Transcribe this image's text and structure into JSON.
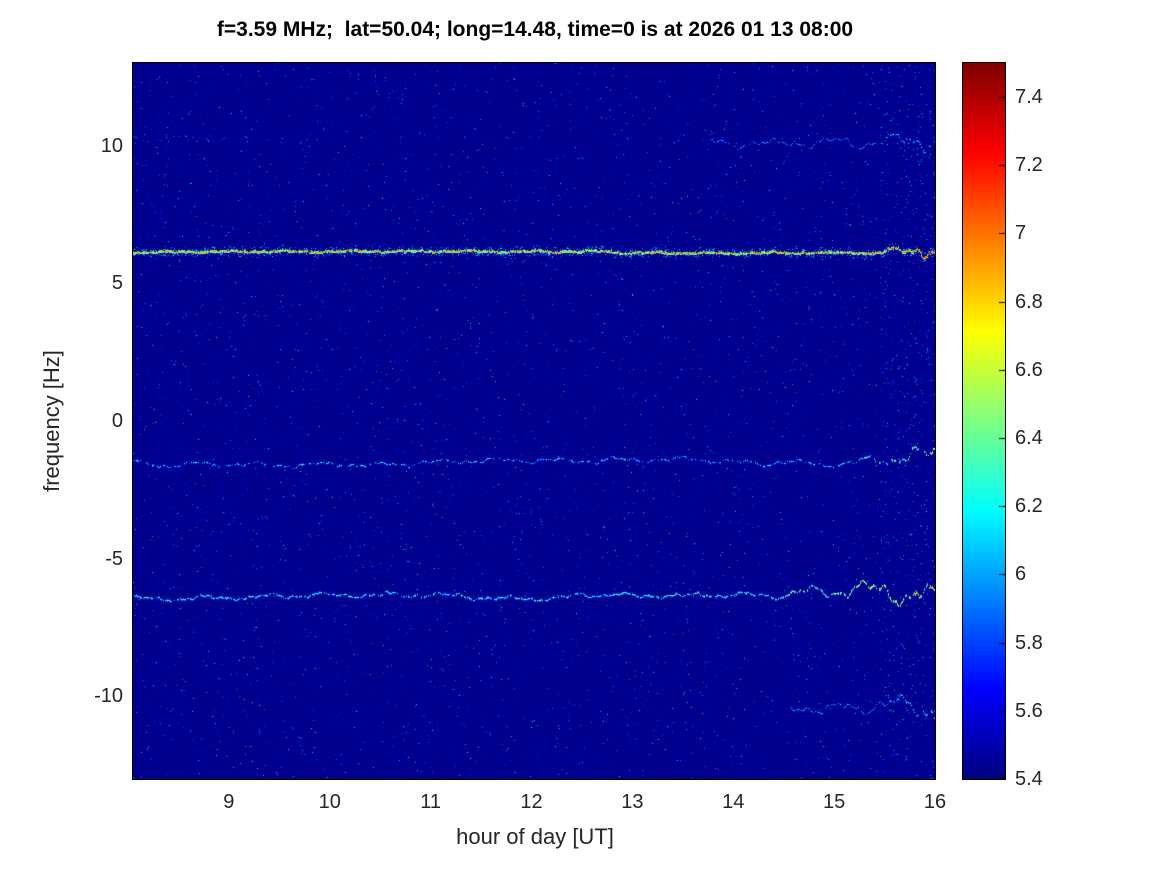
{
  "chart_data": {
    "type": "heatmap",
    "title": "f=3.59 MHz;  lat=50.04; long=14.48, time=0 is at 2026 01 13 08:00",
    "xlabel": "hour of day [UT]",
    "ylabel": "frequency [Hz]",
    "x_range": [
      8.05,
      16
    ],
    "y_range": [
      -13,
      13
    ],
    "x_ticks": [
      9,
      10,
      11,
      12,
      13,
      14,
      15,
      16
    ],
    "x_tick_labels": [
      "9",
      "10",
      "11",
      "12",
      "13",
      "14",
      "15",
      "16"
    ],
    "y_ticks": [
      10,
      5,
      0,
      -5,
      -10
    ],
    "y_tick_labels": [
      "10",
      "5",
      "0",
      "-5",
      "-10"
    ],
    "grid": false,
    "colorbar": {
      "colormap": "jet",
      "min": 5.4,
      "max": 7.5,
      "ticks": [
        7.4,
        7.2,
        7.0,
        6.8,
        6.6,
        6.4,
        6.2,
        6.0,
        5.8,
        5.6,
        5.4
      ],
      "tick_labels": [
        "7.4",
        "7.2",
        "7",
        "6.8",
        "6.6",
        "6.4",
        "6.2",
        "6",
        "5.8",
        "5.6",
        "5.4"
      ]
    },
    "background_value": 5.42,
    "noise": {
      "speckle_probability": 0.013,
      "speckle_max_value": 6.15,
      "right_edge_boost_from": 15.45,
      "right_edge_boost_factor": 3
    },
    "traces": [
      {
        "name": "main-carrier-line",
        "freq_hz": 6.12,
        "x_start": 8.05,
        "x_end": 16,
        "base_value": 6.7,
        "value_spread": 0.35,
        "peak_value": 7.3,
        "wobble_amp_hz": 0.04,
        "density": 1.0,
        "flare_from": 15.35,
        "flare_amp_hz": 0.45,
        "flare_value_boost": 0.4,
        "glow": {
          "halfwidth": 5,
          "density": 0.3,
          "value": 5.7,
          "spread": 0.5
        }
      },
      {
        "name": "doppler-trace-minus1p5",
        "freq_hz": -1.5,
        "x_start": 8.05,
        "x_end": 16,
        "base_value": 5.95,
        "value_spread": 0.35,
        "peak_value": 6.9,
        "wobble_amp_hz": 0.12,
        "density": 0.55,
        "flare_from": 15.0,
        "flare_amp_hz": 0.35,
        "flare_value_boost": 0.7
      },
      {
        "name": "doppler-trace-minus6p4",
        "freq_hz": -6.42,
        "x_start": 8.05,
        "x_end": 16,
        "base_value": 6.05,
        "value_spread": 0.4,
        "peak_value": 7.3,
        "wobble_amp_hz": 0.12,
        "density": 0.78,
        "flare_from": 14.3,
        "flare_amp_hz": 0.45,
        "flare_value_boost": 0.9
      },
      {
        "name": "upper-sideband-right",
        "freq_hz": 10.1,
        "x_start": 13.75,
        "x_end": 16,
        "base_value": 5.8,
        "value_spread": 0.3,
        "peak_value": 6.5,
        "wobble_amp_hz": 0.2,
        "density": 0.55,
        "flare_from": 15.3,
        "flare_amp_hz": 0.3,
        "flare_value_boost": 0.4
      },
      {
        "name": "upper-sideband-left-faint",
        "freq_hz": 10.2,
        "x_start": 8.05,
        "x_end": 9.2,
        "base_value": 5.7,
        "value_spread": 0.25,
        "peak_value": 6.1,
        "wobble_amp_hz": 0.15,
        "density": 0.35,
        "flare_from": null,
        "flare_amp_hz": 0,
        "flare_value_boost": 0
      },
      {
        "name": "lower-sideband-right",
        "freq_hz": -10.35,
        "x_start": 14.55,
        "x_end": 16,
        "base_value": 5.85,
        "value_spread": 0.35,
        "peak_value": 6.6,
        "wobble_amp_hz": 0.25,
        "density": 0.6,
        "flare_from": 15.5,
        "flare_amp_hz": 0.35,
        "flare_value_boost": 0.5
      }
    ]
  }
}
